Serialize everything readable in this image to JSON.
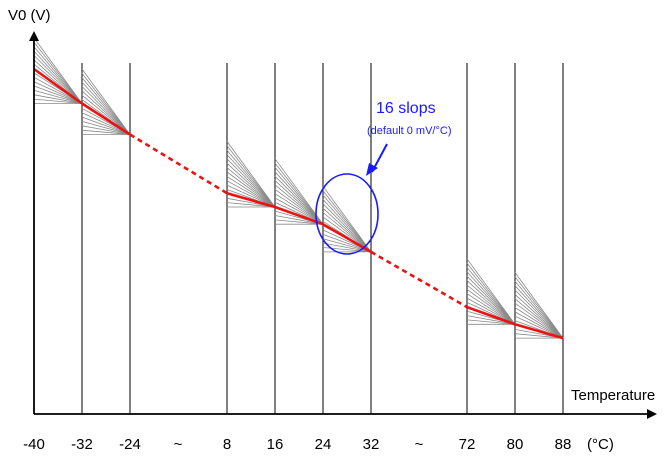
{
  "chart_data": {
    "type": "line",
    "ylabel": "V0 (V)",
    "xlabel": "Temperature",
    "x_unit": "(°C)",
    "break_symbol": "~",
    "tick_labels": [
      "-40",
      "-32",
      "-24",
      "~",
      "8",
      "16",
      "24",
      "32",
      "~",
      "72",
      "80",
      "88"
    ],
    "segments": [
      {
        "points": [
          {
            "x": -40,
            "y": 1.0
          },
          {
            "x": -32,
            "y": 0.9
          },
          {
            "x": -24,
            "y": 0.81
          }
        ],
        "fan_size": 0.19
      },
      {
        "points": [
          {
            "x": 8,
            "y": 0.64
          },
          {
            "x": 16,
            "y": 0.6
          },
          {
            "x": 24,
            "y": 0.55
          },
          {
            "x": 32,
            "y": 0.47
          }
        ],
        "fan_size": 0.19
      },
      {
        "points": [
          {
            "x": 72,
            "y": 0.31
          },
          {
            "x": 80,
            "y": 0.26
          },
          {
            "x": 88,
            "y": 0.22
          }
        ],
        "fan_size": 0.19
      }
    ],
    "gaps": [
      {
        "from": {
          "x": -24,
          "y": 0.81
        },
        "to": {
          "x": 8,
          "y": 0.64
        }
      },
      {
        "from": {
          "x": 32,
          "y": 0.47
        },
        "to": {
          "x": 72,
          "y": 0.31
        }
      }
    ],
    "fan_lines_per_interval": 16,
    "annotation": {
      "title": "16 slops",
      "subtitle": "(default 0 mV/°C)",
      "target_interval": [
        24,
        32
      ]
    },
    "colors": {
      "main_line": "#ee1111",
      "fan_lines": "#888888",
      "annotation": "#1a1aff",
      "axis": "#000000"
    }
  }
}
